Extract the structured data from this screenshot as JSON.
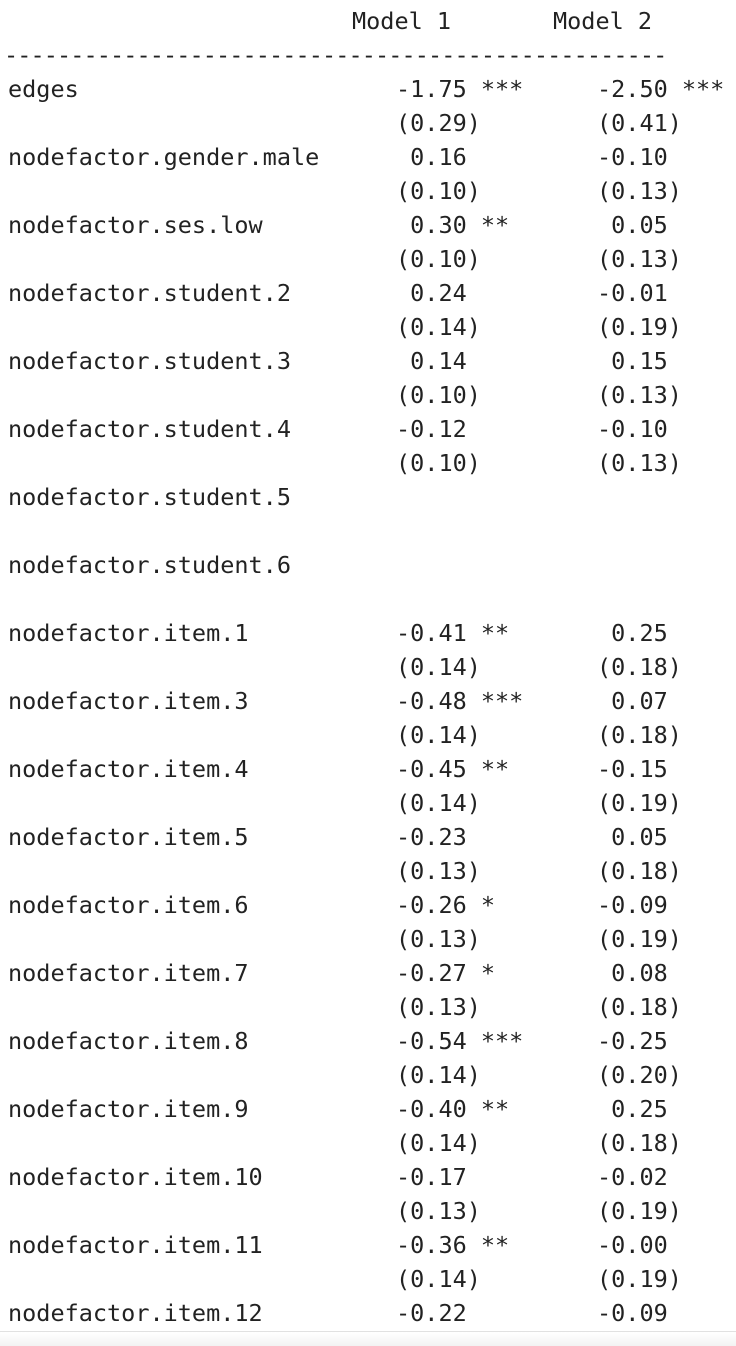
{
  "header": {
    "model1": "Model 1",
    "model2": "Model 2",
    "rule": "--------------------------------------------------"
  },
  "rows": [
    {
      "name": "edges",
      "m1": "-1.75 ***",
      "m2": "-2.50 ***",
      "se1": "(0.29)",
      "se2": "(0.41)"
    },
    {
      "name": "nodefactor.gender.male",
      "m1": " 0.16",
      "m2": "-0.10",
      "se1": "(0.10)",
      "se2": "(0.13)"
    },
    {
      "name": "nodefactor.ses.low",
      "m1": " 0.30 **",
      "m2": " 0.05",
      "se1": "(0.10)",
      "se2": "(0.13)"
    },
    {
      "name": "nodefactor.student.2",
      "m1": " 0.24",
      "m2": "-0.01",
      "se1": "(0.14)",
      "se2": "(0.19)"
    },
    {
      "name": "nodefactor.student.3",
      "m1": " 0.14",
      "m2": " 0.15",
      "se1": "(0.10)",
      "se2": "(0.13)"
    },
    {
      "name": "nodefactor.student.4",
      "m1": "-0.12",
      "m2": "-0.10",
      "se1": "(0.10)",
      "se2": "(0.13)"
    },
    {
      "name": "nodefactor.student.5",
      "m1": "",
      "m2": "",
      "se1": "",
      "se2": ""
    },
    {
      "name": "nodefactor.student.6",
      "m1": "",
      "m2": "",
      "se1": "",
      "se2": ""
    },
    {
      "name": "nodefactor.item.1",
      "m1": "-0.41 **",
      "m2": " 0.25",
      "se1": "(0.14)",
      "se2": "(0.18)"
    },
    {
      "name": "nodefactor.item.3",
      "m1": "-0.48 ***",
      "m2": " 0.07",
      "se1": "(0.14)",
      "se2": "(0.18)"
    },
    {
      "name": "nodefactor.item.4",
      "m1": "-0.45 **",
      "m2": "-0.15",
      "se1": "(0.14)",
      "se2": "(0.19)"
    },
    {
      "name": "nodefactor.item.5",
      "m1": "-0.23",
      "m2": " 0.05",
      "se1": "(0.13)",
      "se2": "(0.18)"
    },
    {
      "name": "nodefactor.item.6",
      "m1": "-0.26 *",
      "m2": "-0.09",
      "se1": "(0.13)",
      "se2": "(0.19)"
    },
    {
      "name": "nodefactor.item.7",
      "m1": "-0.27 *",
      "m2": " 0.08",
      "se1": "(0.13)",
      "se2": "(0.18)"
    },
    {
      "name": "nodefactor.item.8",
      "m1": "-0.54 ***",
      "m2": "-0.25",
      "se1": "(0.14)",
      "se2": "(0.20)"
    },
    {
      "name": "nodefactor.item.9",
      "m1": "-0.40 **",
      "m2": " 0.25",
      "se1": "(0.14)",
      "se2": "(0.18)"
    },
    {
      "name": "nodefactor.item.10",
      "m1": "-0.17",
      "m2": "-0.02",
      "se1": "(0.13)",
      "se2": "(0.19)"
    },
    {
      "name": "nodefactor.item.11",
      "m1": "-0.36 **",
      "m2": "-0.00",
      "se1": "(0.14)",
      "se2": "(0.19)"
    },
    {
      "name": "nodefactor.item.12",
      "m1": "-0.22",
      "m2": "-0.09",
      "se1": "",
      "se2": ""
    }
  ]
}
